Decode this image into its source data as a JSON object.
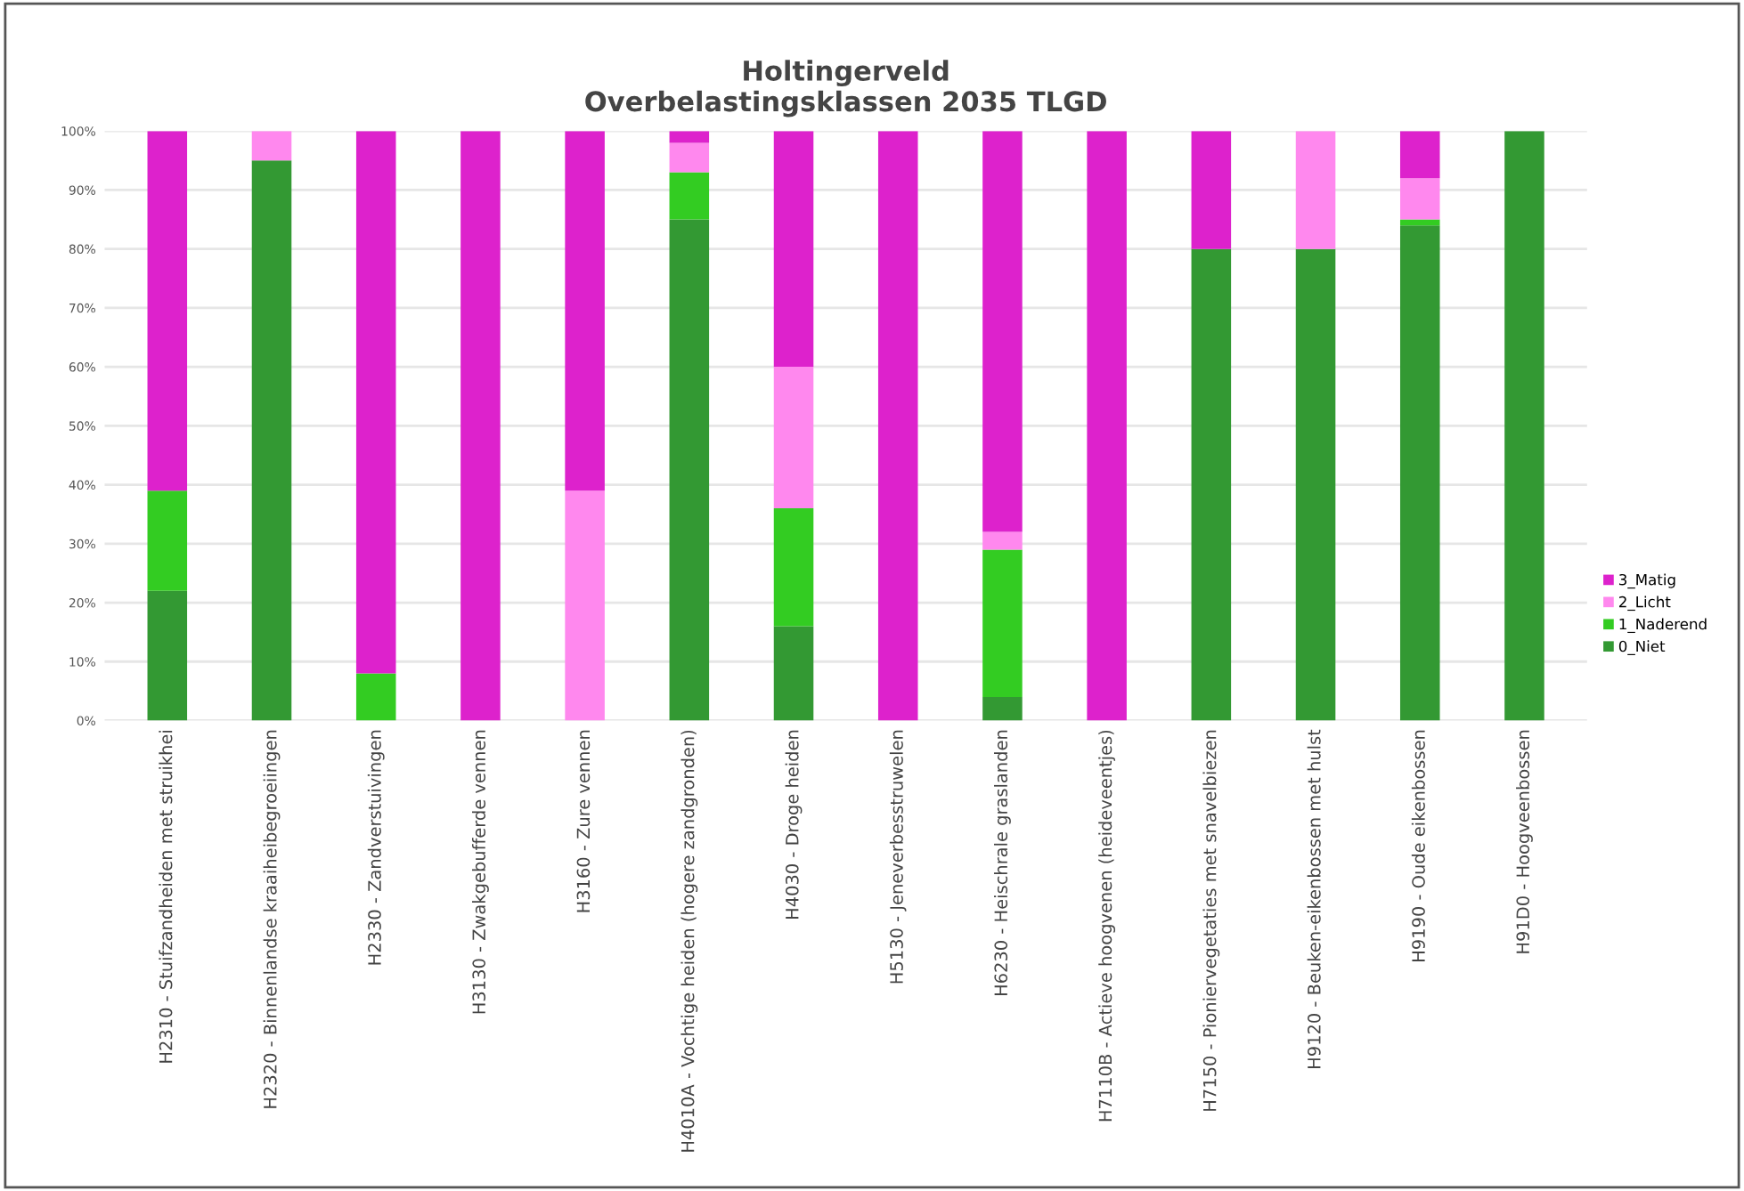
{
  "chart_data": {
    "type": "bar",
    "title": "Holtingerveld\nOverbelastingsklassen 2035 TLGD",
    "stacked": true,
    "categories": [
      "H2310 - Stuifzandheiden met struikhei",
      "H2320 - Binnenlandse kraaiheibegroeiingen",
      "H2330 - Zandverstuivingen",
      "H3130 - Zwakgebufferde vennen",
      "H3160 - Zure vennen",
      "H4010A - Vochtige heiden (hogere zandgronden)",
      "H4030 - Droge heiden",
      "H5130 - Jeneverbesstruwelen",
      "H6230 - Heischrale graslanden",
      "H7110B - Actieve hoogvenen (heideveentjes)",
      "H7150 - Pioniervegetaties met snavelbiezen",
      "H9120 - Beuken-eikenbossen met hulst",
      "H9190 - Oude eikenbossen",
      "H91D0 - Hoogveenbossen"
    ],
    "series": [
      {
        "name": "0_Niet",
        "color": "#339933",
        "values": [
          22,
          95,
          0,
          0,
          0,
          85,
          16,
          0,
          4,
          0,
          80,
          80,
          84,
          100
        ]
      },
      {
        "name": "1_Naderend",
        "color": "#33cc22",
        "values": [
          17,
          0,
          8,
          0,
          0,
          8,
          20,
          0,
          25,
          0,
          0,
          0,
          1,
          0
        ]
      },
      {
        "name": "2_Licht",
        "color": "#ff88ee",
        "values": [
          0,
          5,
          0,
          0,
          39,
          5,
          24,
          0,
          3,
          0,
          0,
          20,
          7,
          0
        ]
      },
      {
        "name": "3_Matig",
        "color": "#dd22cc",
        "values": [
          61,
          0,
          92,
          100,
          61,
          2,
          40,
          100,
          68,
          100,
          20,
          0,
          8,
          0
        ]
      }
    ],
    "ylim": [
      0,
      100
    ],
    "yticks": [
      {
        "value": 0,
        "label": "0%"
      },
      {
        "value": 10,
        "label": "10%"
      },
      {
        "value": 20,
        "label": "20%"
      },
      {
        "value": 30,
        "label": "30%"
      },
      {
        "value": 40,
        "label": "40%"
      },
      {
        "value": 50,
        "label": "50%"
      },
      {
        "value": 60,
        "label": "60%"
      },
      {
        "value": 70,
        "label": "70%"
      },
      {
        "value": 80,
        "label": "80%"
      },
      {
        "value": 90,
        "label": "90%"
      },
      {
        "value": 100,
        "label": "100%"
      }
    ],
    "grid": "y",
    "legend": "right"
  }
}
